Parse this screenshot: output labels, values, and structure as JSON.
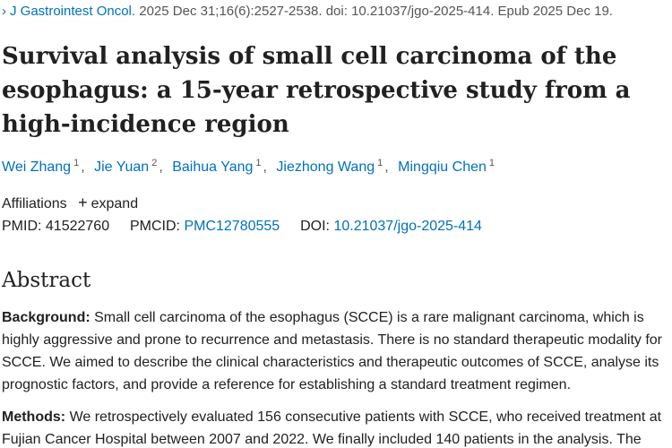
{
  "citation": {
    "journal": "J Gastrointest Oncol.",
    "details": "2025 Dec 31;16(6):2527-2538. doi: 10.21037/jgo-2025-414. Epub 2025 Dec 19."
  },
  "article": {
    "title": "Survival analysis of small cell carcinoma of the esophagus: a 15-year retrospective study from a high-incidence region"
  },
  "authors": [
    {
      "name": "Wei Zhang",
      "aff": "1"
    },
    {
      "name": "Jie Yuan",
      "aff": "2"
    },
    {
      "name": "Baihua Yang",
      "aff": "1"
    },
    {
      "name": "Jiezhong Wang",
      "aff": "1"
    },
    {
      "name": "Mingqiu Chen",
      "aff": "1"
    }
  ],
  "separator": ",",
  "affiliations": {
    "label": "Affiliations",
    "expand_label": "expand"
  },
  "identifiers": {
    "pmid_label": "PMID:",
    "pmid": "41522760",
    "pmcid_label": "PMCID:",
    "pmcid": "PMC12780555",
    "doi_label": "DOI:",
    "doi": "10.21037/jgo-2025-414"
  },
  "abstract": {
    "heading": "Abstract",
    "background_label": "Background:",
    "background_text": "Small cell carcinoma of the esophagus (SCCE) is a rare malignant carcinoma, which is highly aggressive and prone to recurrence and metastasis. There is no standard therapeutic modality for SCCE. We aimed to describe the clinical characteristics and therapeutic outcomes of SCCE, analyse its prognostic factors, and provide a reference for establishing a standard treatment regimen.",
    "methods_label": "Methods:",
    "methods_text": "We retrospectively evaluated 156 consecutive patients with SCCE, who received treatment at Fujian Cancer Hospital between 2007 and 2022. We finally included 140 patients in the analysis. The"
  },
  "colors": {
    "link": "#0071bc",
    "text": "#212121",
    "muted": "#555555"
  },
  "icons": {
    "citation_chevron": "chevron-right-icon",
    "expand": "plus-icon"
  }
}
